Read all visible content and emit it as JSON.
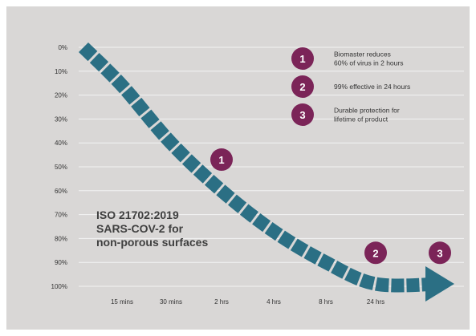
{
  "chart_data": {
    "type": "line",
    "x_categories": [
      "15 mins",
      "30 mins",
      "2 hrs",
      "4 hrs",
      "8 hrs",
      "24 hrs"
    ],
    "y_ticks": [
      "0%",
      "10%",
      "20%",
      "30%",
      "40%",
      "50%",
      "60%",
      "70%",
      "80%",
      "90%",
      "100%"
    ],
    "ylim": [
      0,
      100
    ],
    "y_inverted": true,
    "grid": true,
    "series": [
      {
        "values": [
          {
            "x": "start",
            "y": 0
          },
          {
            "x": "15 mins",
            "y": 16
          },
          {
            "x": "30 mins",
            "y": 40
          },
          {
            "x": "2 hrs",
            "y": 60
          },
          {
            "x": "4 hrs",
            "y": 77
          },
          {
            "x": "8 hrs",
            "y": 90
          },
          {
            "x": "24 hrs",
            "y": 99
          },
          {
            "x": "end",
            "y": 99
          }
        ]
      }
    ],
    "colors": {
      "curve": "#2b6f84",
      "badge": "#7b2458",
      "grid": "#f3f3f3",
      "background": "#d9d7d6",
      "text": "#333333"
    },
    "markers": [
      {
        "label": "1",
        "x": "2 hrs",
        "y": 47
      },
      {
        "label": "2",
        "x": "24 hrs",
        "y": 86
      },
      {
        "label": "3",
        "x": "end",
        "y": 86
      }
    ],
    "legend": {
      "placement": "top-right",
      "items": [
        {
          "badge": "1",
          "lines": [
            "Biomaster reduces",
            "60% of virus in 2 hours"
          ]
        },
        {
          "badge": "2",
          "lines": [
            "99% effective in 24 hours"
          ]
        },
        {
          "badge": "3",
          "lines": [
            "Durable protection for",
            "lifetime of product"
          ]
        }
      ]
    },
    "annotation": [
      "ISO 21702:2019",
      "SARS-COV-2 for",
      "non-porous surfaces"
    ]
  }
}
